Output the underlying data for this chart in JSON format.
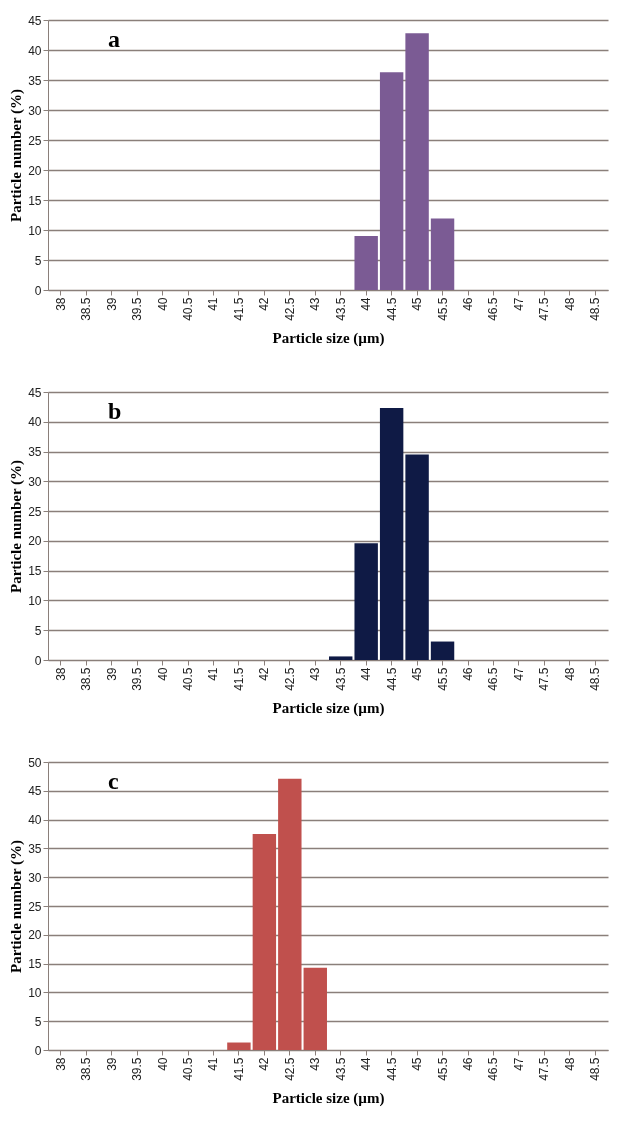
{
  "chart_data": [
    {
      "type": "bar",
      "title": "a",
      "xlabel": "Particle size (µm)",
      "ylabel": "Particle number (%)",
      "categories": [
        "38",
        "38.5",
        "39",
        "39.5",
        "40",
        "40.5",
        "41",
        "41.5",
        "42",
        "42.5",
        "43",
        "43.5",
        "44",
        "44.5",
        "45",
        "45.5",
        "46",
        "46.5",
        "47",
        "47.5",
        "48",
        "48.5"
      ],
      "values": [
        0,
        0,
        0,
        0,
        0,
        0,
        0,
        0,
        0,
        0,
        0,
        0,
        9,
        36.3,
        42.8,
        11.9,
        0,
        0,
        0,
        0,
        0,
        0
      ],
      "color": "#7b5b94",
      "ylim": [
        0,
        45
      ],
      "yticks": [
        0,
        5,
        10,
        15,
        20,
        25,
        30,
        35,
        40,
        45
      ],
      "grid": "y"
    },
    {
      "type": "bar",
      "title": "b",
      "xlabel": "Particle size (µm)",
      "ylabel": "Particle number (%)",
      "categories": [
        "38",
        "38.5",
        "39",
        "39.5",
        "40",
        "40.5",
        "41",
        "41.5",
        "42",
        "42.5",
        "43",
        "43.5",
        "44",
        "44.5",
        "45",
        "45.5",
        "46",
        "46.5",
        "47",
        "47.5",
        "48",
        "48.5"
      ],
      "values": [
        0,
        0,
        0,
        0,
        0,
        0,
        0,
        0,
        0,
        0,
        0,
        0.6,
        19.6,
        42.3,
        34.5,
        3.1,
        0,
        0,
        0,
        0,
        0,
        0
      ],
      "color": "#0f1a45",
      "ylim": [
        0,
        45
      ],
      "yticks": [
        0,
        5,
        10,
        15,
        20,
        25,
        30,
        35,
        40,
        45
      ],
      "grid": "y"
    },
    {
      "type": "bar",
      "title": "c",
      "xlabel": "Particle size (µm)",
      "ylabel": "Particle number (%)",
      "categories": [
        "38",
        "38.5",
        "39",
        "39.5",
        "40",
        "40.5",
        "41",
        "41.5",
        "42",
        "42.5",
        "43",
        "43.5",
        "44",
        "44.5",
        "45",
        "45.5",
        "46",
        "46.5",
        "47",
        "47.5",
        "48",
        "48.5"
      ],
      "values": [
        0,
        0,
        0,
        0,
        0,
        0,
        0,
        1.3,
        37.5,
        47.1,
        14.3,
        0,
        0,
        0,
        0,
        0,
        0,
        0,
        0,
        0,
        0,
        0
      ],
      "color": "#c0504d",
      "ylim": [
        0,
        50
      ],
      "yticks": [
        0,
        5,
        10,
        15,
        20,
        25,
        30,
        35,
        40,
        45,
        50
      ],
      "grid": "y"
    }
  ]
}
